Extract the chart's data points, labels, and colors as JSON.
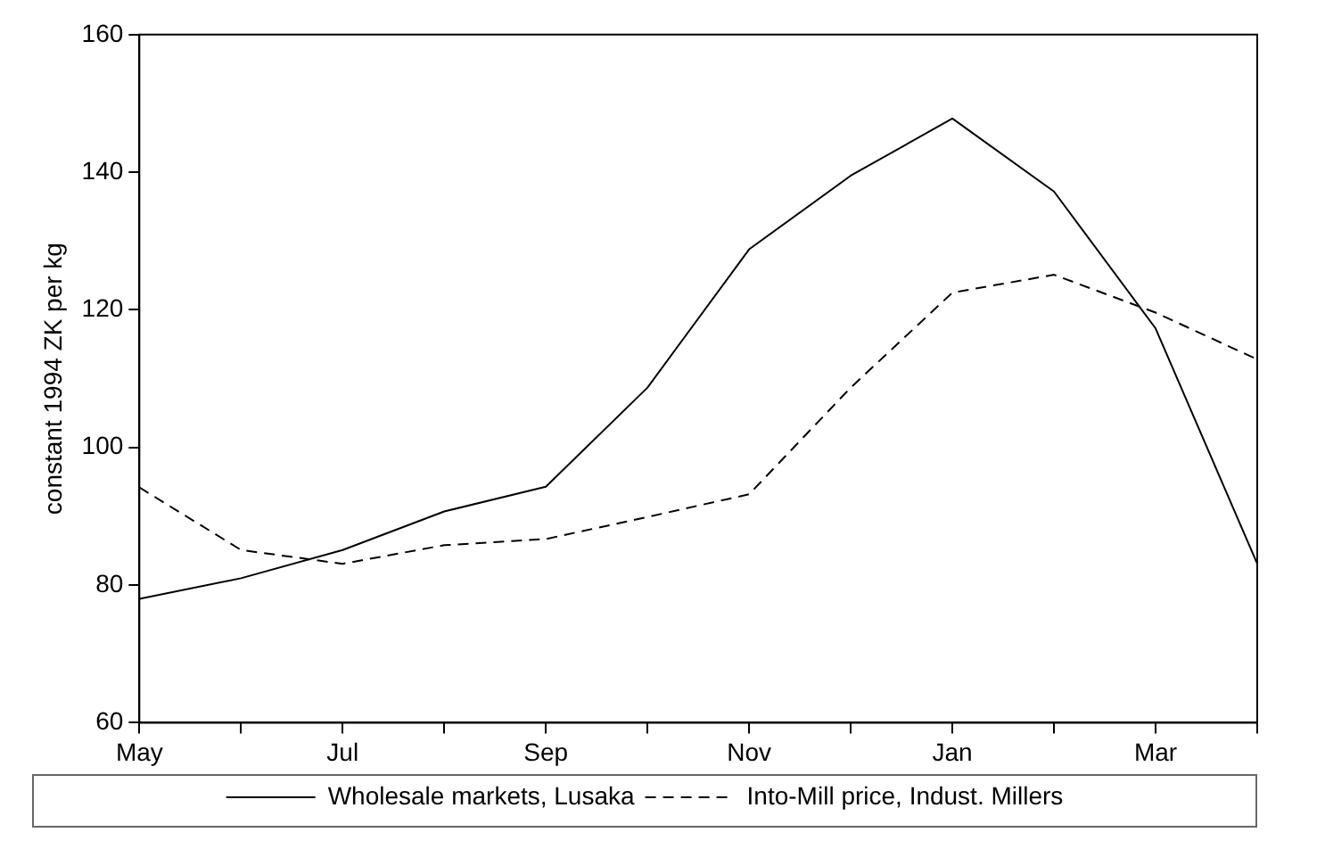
{
  "chart_data": {
    "type": "line",
    "ylabel": "constant 1994 ZK per kg",
    "categories": [
      "May",
      null,
      "Jul",
      null,
      "Sep",
      null,
      "Nov",
      null,
      "Jan",
      null,
      "Mar",
      null
    ],
    "series": [
      {
        "name": "Wholesale markets, Lusaka",
        "color": "#000000",
        "line_style": "solid",
        "values": [
          78,
          81,
          85.1,
          90.7,
          94.3,
          108.7,
          128.8,
          139.5,
          147.8,
          137.2,
          117.3,
          83.1
        ]
      },
      {
        "name": "Into-Mill price, Indust. Millers",
        "color": "#000000",
        "line_style": "dashed",
        "values": [
          94.2,
          85.1,
          83.1,
          85.8,
          86.7,
          89.9,
          93.2,
          108.7,
          122.5,
          125.1,
          119.6,
          112.8
        ]
      }
    ],
    "ylim": [
      60,
      160
    ],
    "yticks": [
      60,
      80,
      100,
      120,
      140,
      160
    ],
    "grid": false,
    "legend": "bottom",
    "marker": "none"
  }
}
